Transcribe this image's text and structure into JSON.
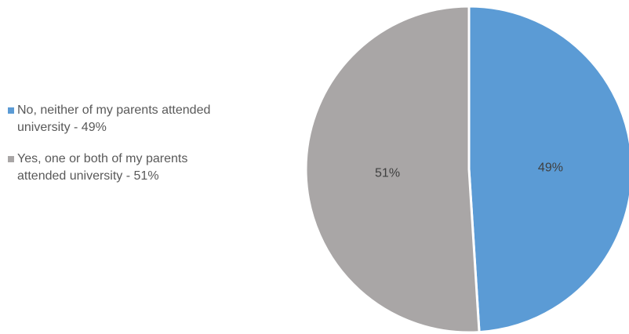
{
  "chart_data": {
    "type": "pie",
    "title": "",
    "categories": [
      "No, neither of my parents attended university - 49%",
      "Yes, one or both of my parents attended university - 51%"
    ],
    "values": [
      49,
      51
    ],
    "slice_labels": [
      "49%",
      "51%"
    ],
    "colors": [
      "#5B9BD5",
      "#A9A6A6"
    ],
    "legend": "left"
  }
}
